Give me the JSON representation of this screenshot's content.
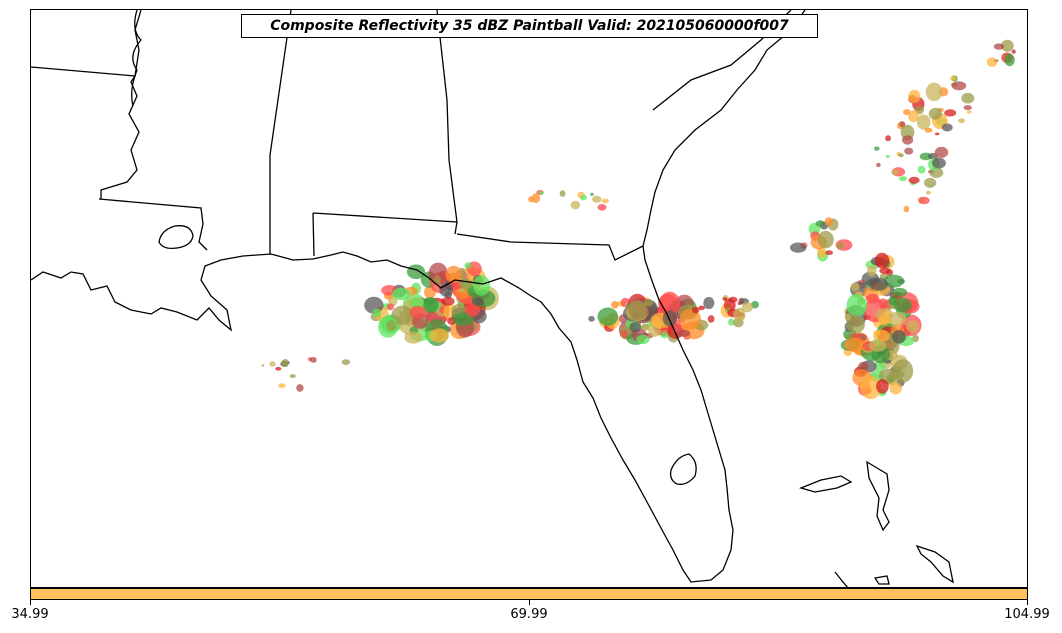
{
  "map": {
    "title": "Composite Reflectivity 35 dBZ Paintball Valid: 202105060000f007",
    "region": "Southeastern United States / Gulf of Mexico",
    "basemap": "state and coastline outlines",
    "paint_colors": [
      "#ff4b4b",
      "#d61e1e",
      "#b34a4a",
      "#3c9b3c",
      "#5fe65f",
      "#9b9b4b",
      "#c8b45a",
      "#ffb43c",
      "#ff8c28",
      "#5a5a5a"
    ]
  },
  "colorbar": {
    "color": "#ffc060",
    "ticks": [
      "34.99",
      "69.99",
      "104.99"
    ]
  }
}
